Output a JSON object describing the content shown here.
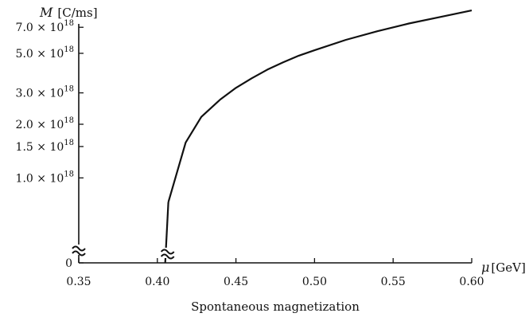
{
  "chart_data": {
    "type": "line",
    "title": "",
    "caption": "Spontaneous magnetization",
    "ylabel": {
      "symbol": "M",
      "unit": "[C/ms]"
    },
    "xlabel": {
      "symbol": "μ",
      "unit": "[GeV]"
    },
    "xlim": [
      0.35,
      0.6
    ],
    "x_ticks": [
      {
        "value": 0.35,
        "label": "0.35"
      },
      {
        "value": 0.4,
        "label": "0.40"
      },
      {
        "value": 0.45,
        "label": "0.45"
      },
      {
        "value": 0.5,
        "label": "0.50"
      },
      {
        "value": 0.55,
        "label": "0.55"
      },
      {
        "value": 0.6,
        "label": "0.60"
      }
    ],
    "y_scale": "log",
    "ylim_log": [
      6e+17,
      8.8e+18
    ],
    "y_ticks": [
      {
        "value": 7e+18,
        "mantissa": "7.0",
        "exp": "18"
      },
      {
        "value": 5e+18,
        "mantissa": "5.0",
        "exp": "18"
      },
      {
        "value": 3e+18,
        "mantissa": "3.0",
        "exp": "18"
      },
      {
        "value": 2e+18,
        "mantissa": "2.0",
        "exp": "18"
      },
      {
        "value": 1.5e+18,
        "mantissa": "1.5",
        "exp": "18"
      },
      {
        "value": 1e+18,
        "mantissa": "1.0",
        "exp": "18"
      }
    ],
    "y_zero_label": "0",
    "times_sign": "×",
    "tick_base": "10",
    "axis_break": true,
    "series": [
      {
        "color": "#111111",
        "onset_x": 0.405,
        "x": [
          0.407,
          0.418,
          0.428,
          0.44,
          0.45,
          0.46,
          0.47,
          0.48,
          0.49,
          0.5,
          0.52,
          0.54,
          0.56,
          0.58,
          0.6
        ],
        "y": [
          7.3e+17,
          1.58e+18,
          2.2e+18,
          2.75e+18,
          3.2e+18,
          3.62e+18,
          4.05e+18,
          4.45e+18,
          4.85e+18,
          5.2e+18,
          5.95e+18,
          6.65e+18,
          7.35e+18,
          8e+18,
          8.7e+18
        ]
      }
    ],
    "grid": false,
    "legend": "none"
  }
}
